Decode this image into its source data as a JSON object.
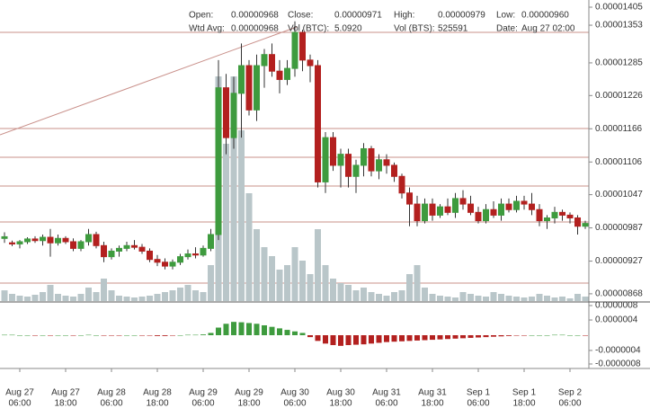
{
  "chart_data": {
    "type": "candlestick",
    "info": [
      {
        "label": "Open:",
        "value": "0.00000968"
      },
      {
        "label": "Close:",
        "value": "0.00000971"
      },
      {
        "label": "High:",
        "value": "0.00000979"
      },
      {
        "label": "Low:",
        "value": "0.00000960"
      },
      {
        "label": "Wtd Avg:",
        "value": "0.00000968"
      },
      {
        "label": "Vol (BTC):",
        "value": "5.0920"
      },
      {
        "label": "Vol (BTS):",
        "value": "525591"
      },
      {
        "label": "Date:",
        "value": "Aug 27 02:00"
      }
    ],
    "x": [
      "Aug 27 02:00",
      "Aug 27 04:00",
      "Aug 27 06:00",
      "Aug 27 08:00",
      "Aug 27 10:00",
      "Aug 27 12:00",
      "Aug 27 14:00",
      "Aug 27 16:00",
      "Aug 27 18:00",
      "Aug 27 20:00",
      "Aug 27 22:00",
      "Aug 28 00:00",
      "Aug 28 02:00",
      "Aug 28 04:00",
      "Aug 28 06:00",
      "Aug 28 08:00",
      "Aug 28 10:00",
      "Aug 28 12:00",
      "Aug 28 14:00",
      "Aug 28 16:00",
      "Aug 28 18:00",
      "Aug 28 20:00",
      "Aug 28 22:00",
      "Aug 29 00:00",
      "Aug 29 02:00",
      "Aug 29 04:00",
      "Aug 29 06:00",
      "Aug 29 08:00",
      "Aug 29 10:00",
      "Aug 29 12:00",
      "Aug 29 14:00",
      "Aug 29 16:00",
      "Aug 29 18:00",
      "Aug 29 20:00",
      "Aug 29 22:00",
      "Aug 30 00:00",
      "Aug 30 02:00",
      "Aug 30 04:00",
      "Aug 30 06:00",
      "Aug 30 08:00",
      "Aug 30 10:00",
      "Aug 30 12:00",
      "Aug 30 14:00",
      "Aug 30 16:00",
      "Aug 30 18:00",
      "Aug 30 20:00",
      "Aug 30 22:00",
      "Aug 31 00:00",
      "Aug 31 02:00",
      "Aug 31 04:00",
      "Aug 31 06:00",
      "Aug 31 08:00",
      "Aug 31 10:00",
      "Aug 31 12:00",
      "Aug 31 14:00",
      "Aug 31 16:00",
      "Aug 31 18:00",
      "Aug 31 20:00",
      "Aug 31 22:00",
      "Sep 1 00:00",
      "Sep 1 02:00",
      "Sep 1 04:00",
      "Sep 1 06:00",
      "Sep 1 08:00",
      "Sep 1 10:00",
      "Sep 1 12:00",
      "Sep 1 14:00",
      "Sep 1 16:00",
      "Sep 1 18:00",
      "Sep 1 20:00",
      "Sep 1 22:00",
      "Sep 2 00:00",
      "Sep 2 02:00",
      "Sep 2 04:00",
      "Sep 2 06:00",
      "Sep 2 08:00",
      "Sep 2 10:00"
    ],
    "open": [
      9.68e-06,
      9.6e-06,
      9.58e-06,
      9.62e-06,
      9.67e-06,
      9.64e-06,
      9.7e-06,
      9.6e-06,
      9.68e-06,
      9.62e-06,
      9.5e-06,
      9.62e-06,
      9.75e-06,
      9.55e-06,
      9.35e-06,
      9.45e-06,
      9.5e-06,
      9.55e-06,
      9.52e-06,
      9.45e-06,
      9.3e-06,
      9.25e-06,
      9.18e-06,
      9.25e-06,
      9.35e-06,
      9.4e-06,
      9.38e-06,
      9.5e-06,
      9.75e-06,
      1.24e-05,
      1.15e-05,
      1.23e-05,
      1.28e-05,
      1.2e-05,
      1.28e-05,
      1.3e-05,
      1.27e-05,
      1.255e-05,
      1.275e-05,
      1.34e-05,
      1.29e-05,
      1.28e-05,
      1.07e-05,
      1.15e-05,
      1.1e-05,
      1.12e-05,
      1.08e-05,
      1.1e-05,
      1.13e-05,
      1.09e-05,
      1.11e-05,
      1.1e-05,
      1.08e-05,
      1.05e-05,
      1.03e-05,
      1e-05,
      1.03e-05,
      1.01e-05,
      1.025e-05,
      1.015e-05,
      1.04e-05,
      1.03e-05,
      1.015e-05,
      1e-05,
      1.02e-05,
      1.01e-05,
      1.03e-05,
      1.02e-05,
      1.035e-05,
      1.03e-05,
      1.02e-05,
      1e-05,
      1.005e-05,
      1.015e-05,
      1.01e-05,
      1.005e-05,
      9.9e-06
    ],
    "high": [
      9.79e-06,
      9.64e-06,
      9.65e-06,
      9.7e-06,
      9.72e-06,
      9.75e-06,
      9.85e-06,
      9.75e-06,
      9.72e-06,
      9.68e-06,
      9.65e-06,
      9.85e-06,
      9.8e-06,
      9.62e-06,
      9.5e-06,
      9.55e-06,
      9.62e-06,
      9.65e-06,
      9.58e-06,
      9.5e-06,
      9.38e-06,
      9.32e-06,
      9.3e-06,
      9.4e-06,
      9.48e-06,
      9.52e-06,
      9.55e-06,
      9.85e-06,
      1.29e-05,
      1.265e-05,
      1.26e-05,
      1.32e-05,
      1.29e-05,
      1.3e-05,
      1.31e-05,
      1.32e-05,
      1.29e-05,
      1.29e-05,
      1.36e-05,
      1.345e-05,
      1.3e-05,
      1.29e-05,
      1.16e-05,
      1.16e-05,
      1.13e-05,
      1.13e-05,
      1.11e-05,
      1.14e-05,
      1.135e-05,
      1.12e-05,
      1.12e-05,
      1.105e-05,
      1.085e-05,
      1.06e-05,
      1.045e-05,
      1.04e-05,
      1.04e-05,
      1.03e-05,
      1.04e-05,
      1.05e-05,
      1.055e-05,
      1.045e-05,
      1.025e-05,
      1.03e-05,
      1.035e-05,
      1.04e-05,
      1.04e-05,
      1.045e-05,
      1.045e-05,
      1.05e-05,
      1.03e-05,
      1.01e-05,
      1.025e-05,
      1.02e-05,
      1.015e-05,
      1.01e-05,
      1e-05
    ],
    "low": [
      9.6e-06,
      9.54e-06,
      9.5e-06,
      9.58e-06,
      9.6e-06,
      9.55e-06,
      9.35e-06,
      9.55e-06,
      9.58e-06,
      9.45e-06,
      9.45e-06,
      9.55e-06,
      9.5e-06,
      9.25e-06,
      9.3e-06,
      9.35e-06,
      9.45e-06,
      9.48e-06,
      9.4e-06,
      9.25e-06,
      9.18e-06,
      9.12e-06,
      9.12e-06,
      9.2e-06,
      9.3e-06,
      9.32e-06,
      9.35e-06,
      9.45e-06,
      9.65e-06,
      1.12e-05,
      1.13e-05,
      1.15e-05,
      1.19e-05,
      1.18e-05,
      1.24e-05,
      1.26e-05,
      1.23e-05,
      1.245e-05,
      1.26e-05,
      1.27e-05,
      1.25e-05,
      1.06e-05,
      1.05e-05,
      1.09e-05,
      1.06e-05,
      1.06e-05,
      1.05e-05,
      1.08e-05,
      1.08e-05,
      1.075e-05,
      1.085e-05,
      1.07e-05,
      1.04e-05,
      9.9e-06,
      9.9e-06,
      9.95e-06,
      1e-05,
      1.005e-05,
      1.01e-05,
      1.005e-05,
      1.02e-05,
      1.01e-05,
      9.95e-06,
      9.95e-06,
      1.005e-05,
      1e-05,
      1.015e-05,
      1.015e-05,
      1.02e-05,
      1.01e-05,
      9.9e-06,
      9.85e-06,
      9.95e-06,
      1e-05,
      9.95e-06,
      9.75e-06,
      9.85e-06
    ],
    "close": [
      9.71e-06,
      9.58e-06,
      9.62e-06,
      9.67e-06,
      9.64e-06,
      9.7e-06,
      9.6e-06,
      9.68e-06,
      9.62e-06,
      9.5e-06,
      9.62e-06,
      9.75e-06,
      9.55e-06,
      9.35e-06,
      9.45e-06,
      9.5e-06,
      9.55e-06,
      9.52e-06,
      9.45e-06,
      9.3e-06,
      9.25e-06,
      9.18e-06,
      9.25e-06,
      9.35e-06,
      9.4e-06,
      9.38e-06,
      9.5e-06,
      9.75e-06,
      1.24e-05,
      1.15e-05,
      1.23e-05,
      1.28e-05,
      1.2e-05,
      1.28e-05,
      1.3e-05,
      1.27e-05,
      1.255e-05,
      1.275e-05,
      1.34e-05,
      1.29e-05,
      1.28e-05,
      1.07e-05,
      1.15e-05,
      1.1e-05,
      1.12e-05,
      1.08e-05,
      1.1e-05,
      1.13e-05,
      1.09e-05,
      1.11e-05,
      1.1e-05,
      1.08e-05,
      1.05e-05,
      1.03e-05,
      1e-05,
      1.03e-05,
      1.01e-05,
      1.025e-05,
      1.015e-05,
      1.04e-05,
      1.03e-05,
      1.015e-05,
      1e-05,
      1.02e-05,
      1.01e-05,
      1.03e-05,
      1.02e-05,
      1.035e-05,
      1.03e-05,
      1.02e-05,
      1e-05,
      1.005e-05,
      1.015e-05,
      1.01e-05,
      1.005e-05,
      9.9e-06,
      9.95e-06
    ],
    "volume": [
      525591,
      352000,
      264000,
      220000,
      308000,
      440000,
      792000,
      352000,
      264000,
      220000,
      352000,
      660000,
      440000,
      1100000,
      528000,
      264000,
      220000,
      176000,
      220000,
      264000,
      352000,
      440000,
      528000,
      660000,
      792000,
      528000,
      440000,
      1760000,
      11000000,
      7700000,
      11000000,
      8360000,
      5280000,
      3520000,
      2640000,
      2200000,
      1540000,
      1760000,
      2640000,
      1980000,
      1320000,
      3520000,
      1760000,
      1100000,
      880000,
      792000,
      528000,
      660000,
      440000,
      352000,
      264000,
      440000,
      528000,
      1320000,
      1760000,
      660000,
      352000,
      264000,
      220000,
      176000,
      440000,
      352000,
      264000,
      220000,
      440000,
      352000,
      264000,
      220000,
      176000,
      220000,
      352000,
      264000,
      176000,
      220000,
      132000,
      352000,
      220000
    ],
    "up_color": "#3e9b3e",
    "down_color": "#b3201f",
    "volume_color": "#b9c6c9",
    "ylim": [
      8.5e-06,
      1.405e-05
    ],
    "yticks": [
      1.405e-05,
      1.353e-05,
      1.285e-05,
      1.226e-05,
      1.166e-05,
      1.106e-05,
      1.047e-05,
      9.87e-06,
      9.27e-06,
      8.68e-06
    ],
    "macd": {
      "values": [
        1e-08,
        1e-08,
        0,
        0,
        -1e-08,
        0,
        -1e-08,
        0,
        0,
        -1e-08,
        0,
        1e-08,
        0,
        -1e-08,
        -1e-08,
        -1e-08,
        0,
        0,
        -1e-08,
        -1e-08,
        -2e-08,
        -2e-08,
        -1e-08,
        0,
        1e-08,
        1e-08,
        2e-08,
        6e-08,
        2e-07,
        3e-07,
        3.5e-07,
        3.4e-07,
        3.2e-07,
        3e-07,
        2.6e-07,
        2.2e-07,
        1.8e-07,
        1.4e-07,
        1e-07,
        6e-08,
        -5e-08,
        -1.5e-07,
        -2.2e-07,
        -2.6e-07,
        -2.8e-07,
        -2.6e-07,
        -2.5e-07,
        -2.4e-07,
        -2.2e-07,
        -2e-07,
        -1.8e-07,
        -1.7e-07,
        -1.6e-07,
        -1.5e-07,
        -1.4e-07,
        -1.3e-07,
        -1.2e-07,
        -1.1e-07,
        -1e-07,
        -9e-08,
        -8e-08,
        -7e-08,
        -6e-08,
        -5e-08,
        -4e-08,
        -3e-08,
        -2e-08,
        -1e-08,
        -1e-08,
        0,
        0,
        0,
        1e-08,
        1e-08,
        0,
        0,
        -1e-08
      ],
      "ylim": [
        -8.5e-07,
        8.5e-07
      ],
      "yticks": [
        {
          "value": 8e-07,
          "label": "0.0000008"
        },
        {
          "value": 4e-07,
          "label": "0.0000004"
        },
        {
          "value": -4e-07,
          "label": "-0.0000004"
        },
        {
          "value": -8e-07,
          "label": "-0.0000008"
        }
      ]
    },
    "xticks": [
      {
        "date": "Aug 27",
        "time": "06:00"
      },
      {
        "date": "Aug 27",
        "time": "18:00"
      },
      {
        "date": "Aug 28",
        "time": "06:00"
      },
      {
        "date": "Aug 28",
        "time": "18:00"
      },
      {
        "date": "Aug 29",
        "time": "06:00"
      },
      {
        "date": "Aug 29",
        "time": "18:00"
      },
      {
        "date": "Aug 30",
        "time": "06:00"
      },
      {
        "date": "Aug 30",
        "time": "18:00"
      },
      {
        "date": "Aug 31",
        "time": "06:00"
      },
      {
        "date": "Aug 31",
        "time": "18:00"
      },
      {
        "date": "Sep 1",
        "time": "06:00"
      },
      {
        "date": "Sep 1",
        "time": "18:00"
      },
      {
        "date": "Sep 2",
        "time": "06:00"
      }
    ]
  }
}
